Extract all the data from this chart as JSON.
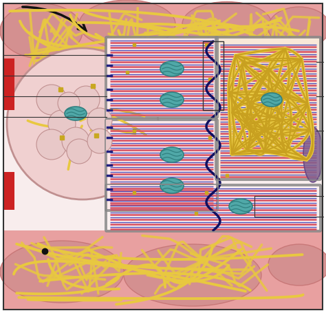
{
  "fig_width": 4.74,
  "fig_height": 4.55,
  "dpi": 100,
  "bg_white": "#ffffff",
  "muscle_color": "#c87878",
  "muscle_light": "#e8a0a0",
  "muscle_pale": "#f0c8c8",
  "muscle_medium": "#d49090",
  "gold_net": "#c8a020",
  "gold_light": "#e8c840",
  "cell_interior": "#f5d8d8",
  "cell_pale": "#fce8e8",
  "teal_mito": "#50a8a8",
  "teal_dark": "#308080",
  "red_stripe": "#d85060",
  "blue_stripe": "#5050b8",
  "dark_blue": "#202080",
  "purple_nucleus": "#806090",
  "black_arrow": "#111111",
  "red_bracket": "#cc2222",
  "label_line": "#333333",
  "gray_border": "#888888",
  "intercalated_wavy": "#101060"
}
